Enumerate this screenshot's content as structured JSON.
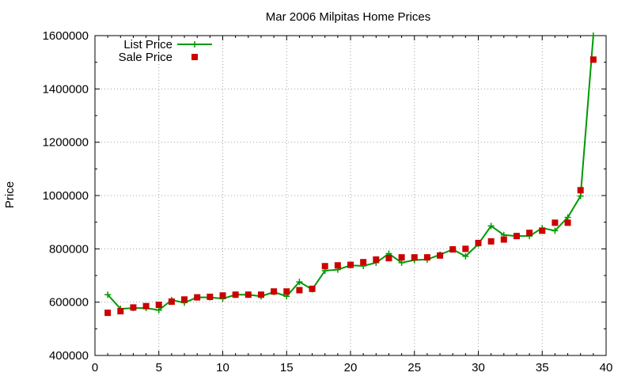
{
  "chart_data": {
    "type": "line",
    "title": "Mar 2006 Milpitas Home Prices",
    "xlabel": "",
    "ylabel": "Price",
    "xlim": [
      0,
      40
    ],
    "ylim": [
      400000,
      1600000
    ],
    "x_ticks": [
      0,
      5,
      10,
      15,
      20,
      25,
      30,
      35,
      40
    ],
    "y_ticks": [
      400000,
      600000,
      800000,
      1000000,
      1200000,
      1400000,
      1600000
    ],
    "grid": true,
    "legend_position": "top-left",
    "x": [
      1,
      2,
      3,
      4,
      5,
      6,
      7,
      8,
      9,
      10,
      11,
      12,
      13,
      14,
      15,
      16,
      17,
      18,
      19,
      20,
      21,
      22,
      23,
      24,
      25,
      26,
      27,
      28,
      29,
      30,
      31,
      32,
      33,
      34,
      35,
      36,
      37,
      38,
      39
    ],
    "series": [
      {
        "name": "List Price",
        "style": "line-with-plus-markers",
        "color": "#009900",
        "values": [
          628000,
          575000,
          578000,
          578000,
          570000,
          608000,
          598000,
          618000,
          618000,
          613000,
          628000,
          628000,
          622000,
          638000,
          622000,
          676000,
          648000,
          718000,
          722000,
          738000,
          736000,
          748000,
          782000,
          748000,
          758000,
          760000,
          778000,
          798000,
          772000,
          818000,
          886000,
          852000,
          848000,
          848000,
          878000,
          868000,
          918000,
          998000,
          1600000
        ]
      },
      {
        "name": "Sale Price",
        "style": "square-markers",
        "color": "#cc0000",
        "values": [
          560000,
          566000,
          580000,
          585000,
          590000,
          602000,
          610000,
          618000,
          620000,
          625000,
          628000,
          628000,
          628000,
          640000,
          640000,
          645000,
          650000,
          735000,
          738000,
          740000,
          750000,
          760000,
          765000,
          768000,
          768000,
          768000,
          775000,
          798000,
          800000,
          822000,
          828000,
          835000,
          848000,
          860000,
          868000,
          898000,
          898000,
          1020000,
          1510000
        ]
      }
    ]
  }
}
